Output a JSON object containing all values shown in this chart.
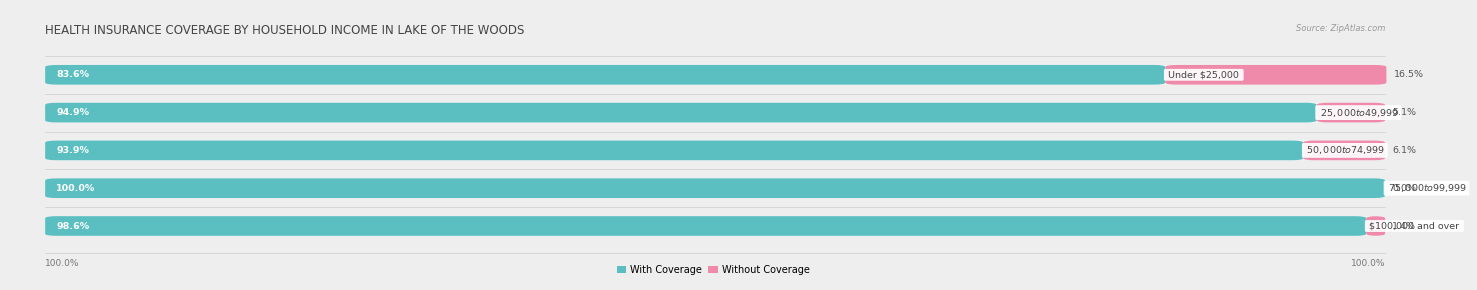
{
  "title": "HEALTH INSURANCE COVERAGE BY HOUSEHOLD INCOME IN LAKE OF THE WOODS",
  "source": "Source: ZipAtlas.com",
  "categories": [
    "Under $25,000",
    "$25,000 to $49,999",
    "$50,000 to $74,999",
    "$75,000 to $99,999",
    "$100,000 and over"
  ],
  "with_coverage": [
    83.6,
    94.9,
    93.9,
    100.0,
    98.6
  ],
  "without_coverage": [
    16.5,
    5.1,
    6.1,
    0.0,
    1.4
  ],
  "color_with": "#5bbfc2",
  "color_without": "#f08aaa",
  "bg_color": "#eeeeee",
  "bar_bg": "#f8f8f8",
  "row_bg": "#e8e8e8",
  "title_fontsize": 8.5,
  "label_fontsize": 7.0,
  "cat_fontsize": 6.8,
  "pct_fontsize": 6.8,
  "axis_label_fontsize": 6.5,
  "source_fontsize": 6.0,
  "x_left_label": "100.0%",
  "x_right_label": "100.0%",
  "legend_with": "With Coverage",
  "legend_without": "Without Coverage"
}
